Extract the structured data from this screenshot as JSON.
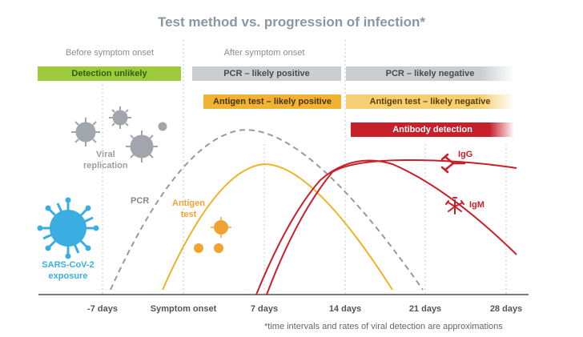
{
  "title": "Test method vs. progression of infection*",
  "phases": {
    "before": "Before symptom onset",
    "after": "After symptom onset"
  },
  "bars": {
    "detection_unlikely": "Detection unlikely",
    "pcr_positive": "PCR – likely positive",
    "pcr_negative": "PCR – likely negative",
    "antigen_positive": "Antigen test – likely positive",
    "antigen_negative": "Antigen test – likely negative",
    "antibody": "Antibody detection"
  },
  "timeline": {
    "ticks": [
      "-7 days",
      "Symptom onset",
      "7 days",
      "14 days",
      "21 days",
      "28 days"
    ]
  },
  "labels": {
    "viral_replication_1": "Viral",
    "viral_replication_2": "replication",
    "pcr": "PCR",
    "antigen_1": "Antigen",
    "antigen_2": "test",
    "exposure_1": "SARS-CoV-2",
    "exposure_2": "exposure",
    "igg": "IgG",
    "igm": "IgM"
  },
  "footnote": "*time intervals and rates of viral detection are approximations",
  "colors": {
    "green": "#9dcb3b",
    "grey": "#c9ced3",
    "orange": "#f2b233",
    "red": "#c8202a",
    "pcr_line": "#9a9a9a",
    "antigen_line": "#f0b323",
    "virus_grey": "#a0a6ab",
    "virus_blue": "#3aaee0"
  }
}
